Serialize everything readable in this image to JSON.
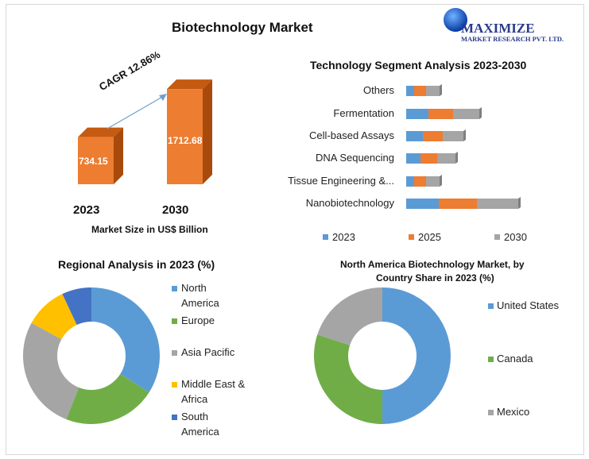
{
  "title": "Biotechnology Market",
  "logo": {
    "name": "MAXIMIZE",
    "sub": "MARKET RESEARCH PVT. LTD."
  },
  "chart_data": [
    {
      "type": "bar",
      "title": "Biotechnology Market",
      "categories": [
        "2023",
        "2030"
      ],
      "values": [
        734.15,
        1712.68
      ],
      "value_labels": [
        "734.15",
        "1712.68"
      ],
      "annotation": "CAGR 12.86%",
      "xlabel": "Market Size in US$ Billion",
      "color": "#ED7D31"
    },
    {
      "type": "bar",
      "orientation": "horizontal-stacked",
      "title": "Technology Segment Analysis 2023-2030",
      "categories": [
        "Others",
        "Fermentation",
        "Cell-based Assays",
        "DNA Sequencing",
        "Tissue Engineering &...",
        "Nanobiotechnology"
      ],
      "series": [
        {
          "name": "2023",
          "color": "#5B9BD5",
          "values": [
            10,
            28,
            21,
            18,
            10,
            41
          ]
        },
        {
          "name": "2025",
          "color": "#ED7D31",
          "values": [
            15,
            31,
            25,
            21,
            15,
            48
          ]
        },
        {
          "name": "2030",
          "color": "#A5A5A5",
          "values": [
            17,
            33,
            26,
            23,
            17,
            52
          ]
        }
      ],
      "legend": "bottom"
    },
    {
      "type": "pie",
      "title": "Regional Analysis in 2023 (%)",
      "labels": [
        "North America",
        "Europe",
        "Asia Pacific",
        "Middle East & Africa",
        "South America"
      ],
      "legend_lines": [
        [
          "North",
          "America"
        ],
        [
          "Europe"
        ],
        [
          "Asia Pacific"
        ],
        [
          "Middle East &",
          "Africa"
        ],
        [
          "South",
          "America"
        ]
      ],
      "values": [
        34,
        22,
        27,
        10,
        7
      ],
      "colors": [
        "#5B9BD5",
        "#70AD47",
        "#A5A5A5",
        "#FFC000",
        "#4472C4"
      ],
      "legend": "right"
    },
    {
      "type": "pie",
      "title": "North America Biotechnology Market, by Country Share in 2023 (%)",
      "title_lines": [
        "North America Biotechnology Market, by",
        "Country Share in 2023 (%)"
      ],
      "labels": [
        "United States",
        "Canada",
        "Mexico"
      ],
      "values": [
        50,
        30,
        20
      ],
      "colors": [
        "#5B9BD5",
        "#70AD47",
        "#A5A5A5"
      ],
      "legend": "right"
    }
  ]
}
